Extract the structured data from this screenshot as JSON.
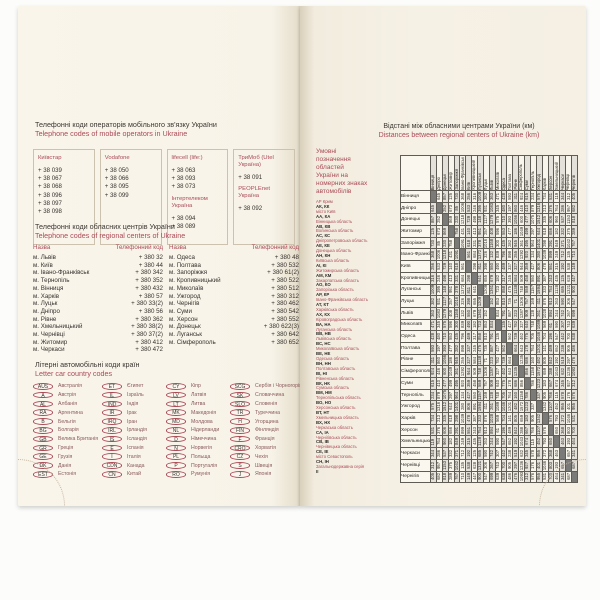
{
  "colors": {
    "accent": "#ab4a57",
    "ink": "#3c3733",
    "paper": "#f7f3e8",
    "table_stripe": "#e4e1da",
    "table_diagonal": "#7a7a78"
  },
  "page_left": {
    "section_mobile": {
      "title_uk": "Телефонні коди операторів мобільного зв'язку України",
      "title_en": "Telephone codes of mobile operators in Ukraine",
      "operators": [
        {
          "groups": [
            {
              "label": "Київстар",
              "codes": [
                "+ 38 039",
                "+ 38 067",
                "+ 38 068",
                "+ 38 096",
                "+ 38 097",
                "+ 38 098"
              ]
            }
          ]
        },
        {
          "groups": [
            {
              "label": "Vodafone",
              "codes": [
                "+ 38 050",
                "+ 38 066",
                "+ 38 095",
                "+ 38 099"
              ]
            }
          ]
        },
        {
          "groups": [
            {
              "label": "lifecell (life:)",
              "codes": [
                "+ 38 063",
                "+ 38 093",
                "+ 38 073"
              ]
            },
            {
              "label": "Інтертелеком Україна",
              "codes": [
                "+ 38 094",
                "+ 38 089"
              ]
            }
          ]
        },
        {
          "groups": [
            {
              "label": "ТриМоб (Utel Україна)",
              "codes": [
                "+ 38 091"
              ]
            },
            {
              "label": "PEOPLEnet Україна",
              "codes": [
                "+ 38 092"
              ]
            }
          ]
        }
      ]
    },
    "section_city_codes": {
      "title_uk": "Телефонні коди обласних центрів України",
      "title_en": "Telephone codes of regional centers of Ukraine",
      "col_name": "Назва",
      "col_code": "Телефонний код",
      "left": [
        [
          "м. Львів",
          "+ 380 32"
        ],
        [
          "м. Київ",
          "+ 380 44"
        ],
        [
          "м. Івано-Франківськ",
          "+ 380 342"
        ],
        [
          "м. Тернопіль",
          "+ 380 352"
        ],
        [
          "м. Вінниця",
          "+ 380 432"
        ],
        [
          "м. Харків",
          "+ 380 57"
        ],
        [
          "м. Луцьк",
          "+ 380 33(2)"
        ],
        [
          "м. Дніпро",
          "+ 380 56"
        ],
        [
          "м. Рівне",
          "+ 380 362"
        ],
        [
          "м. Хмельницький",
          "+ 380 38(2)"
        ],
        [
          "м. Чернівці",
          "+ 380 37(2)"
        ],
        [
          "м. Житомир",
          "+ 380 412"
        ],
        [
          "м. Черкаси",
          "+ 380 472"
        ]
      ],
      "right": [
        [
          "м. Одеса",
          "+ 380 48"
        ],
        [
          "м. Полтава",
          "+ 380 532"
        ],
        [
          "м. Запоріжжя",
          "+ 380 61(2)"
        ],
        [
          "м. Кропивницький",
          "+ 380 522"
        ],
        [
          "м. Миколаїв",
          "+ 380 512"
        ],
        [
          "м. Ужгород",
          "+ 380 312"
        ],
        [
          "м. Чернігів",
          "+ 380 462"
        ],
        [
          "м. Суми",
          "+ 380 542"
        ],
        [
          "м. Херсон",
          "+ 380 552"
        ],
        [
          "м. Донецьк",
          "+ 380 622(3)"
        ],
        [
          "м. Луганськ",
          "+ 380 642"
        ],
        [
          "м. Сімферополь",
          "+ 380 652"
        ]
      ]
    },
    "section_car_codes": {
      "title_uk": "Літерні автомобільні коди країн",
      "title_en": "Letter car country codes",
      "columns": [
        [
          {
            "code": "AUS",
            "country": "Австралія"
          },
          {
            "code": "A",
            "country": "Австрія"
          },
          {
            "code": "AL",
            "country": "Албанія"
          },
          {
            "code": "RA",
            "country": "Аргентина"
          },
          {
            "code": "B",
            "country": "Бельгія"
          },
          {
            "code": "BG",
            "country": "Болгарія"
          },
          {
            "code": "GB",
            "country": "Велика Британія"
          },
          {
            "code": "GR",
            "country": "Греція"
          },
          {
            "code": "GE",
            "country": "Грузія"
          },
          {
            "code": "DK",
            "country": "Данія"
          },
          {
            "code": "EST",
            "country": "Естонія"
          }
        ],
        [
          {
            "code": "ET",
            "country": "Єгипет"
          },
          {
            "code": "IL",
            "country": "Ізраїль"
          },
          {
            "code": "IND",
            "country": "Індія"
          },
          {
            "code": "IR",
            "country": "Ірак"
          },
          {
            "code": "IRQ",
            "country": "Іран"
          },
          {
            "code": "IRL",
            "country": "Ірландія"
          },
          {
            "code": "IS",
            "country": "Ісландія"
          },
          {
            "code": "E",
            "country": "Іспанія"
          },
          {
            "code": "I",
            "country": "Італія"
          },
          {
            "code": "CDN",
            "country": "Канада"
          },
          {
            "code": "CN",
            "country": "Китай"
          }
        ],
        [
          {
            "code": "CY",
            "country": "Кіпр"
          },
          {
            "code": "LV",
            "country": "Латвія"
          },
          {
            "code": "LT",
            "country": "Литва"
          },
          {
            "code": "MK",
            "country": "Македонія"
          },
          {
            "code": "MD",
            "country": "Молдова"
          },
          {
            "code": "NL",
            "country": "Нідерланди"
          },
          {
            "code": "D",
            "country": "Німеччина"
          },
          {
            "code": "N",
            "country": "Норвегія"
          },
          {
            "code": "PL",
            "country": "Польща"
          },
          {
            "code": "P",
            "country": "Португалія"
          },
          {
            "code": "RO",
            "country": "Румунія"
          }
        ],
        [
          {
            "code": "SCG",
            "country": "Сербія і Чорногорія"
          },
          {
            "code": "SK",
            "country": "Словаччина"
          },
          {
            "code": "SLO",
            "country": "Словенія"
          },
          {
            "code": "TR",
            "country": "Туреччина"
          },
          {
            "code": "H",
            "country": "Угорщина"
          },
          {
            "code": "FIN",
            "country": "Фінляндія"
          },
          {
            "code": "F",
            "country": "Франція"
          },
          {
            "code": "CRO",
            "country": "Хорватія"
          },
          {
            "code": "CZ",
            "country": "Чехія"
          },
          {
            "code": "S",
            "country": "Швеція"
          },
          {
            "code": "J",
            "country": "Японія"
          }
        ]
      ]
    }
  },
  "page_right": {
    "title_uk": "Відстані між обласними центрами України (км)",
    "title_en": "Distances between regional centers of Ukraine (km)",
    "legend": {
      "header": "Умовні позначення областей України на номерних знаках автомобілів",
      "entries": [
        {
          "name": "АР Крим",
          "codes": "АК, КК"
        },
        {
          "name": "місто Київ",
          "codes": "АА, КА"
        },
        {
          "name": "Вінницька область",
          "codes": "АВ, КВ"
        },
        {
          "name": "Волинська область",
          "codes": "АС, КС"
        },
        {
          "name": "Дніпропетровська область",
          "codes": "АЕ, КЕ"
        },
        {
          "name": "Донецька область",
          "codes": "АН, КН"
        },
        {
          "name": "Київська область",
          "codes": "АІ, КІ"
        },
        {
          "name": "Житомирська область",
          "codes": "АМ, КМ"
        },
        {
          "name": "Закарпатська область",
          "codes": "АО, КО"
        },
        {
          "name": "Запорізька область",
          "codes": "АР, КР"
        },
        {
          "name": "Івано-Франківська область",
          "codes": "АТ, КТ"
        },
        {
          "name": "Харківська область",
          "codes": "АХ, КХ"
        },
        {
          "name": "Кіровоградська область",
          "codes": "ВА, НА"
        },
        {
          "name": "Луганська область",
          "codes": "ВВ, НВ"
        },
        {
          "name": "Львівська область",
          "codes": "ВС, НС"
        },
        {
          "name": "Миколаївська область",
          "codes": "ВЕ, НЕ"
        },
        {
          "name": "Одеська область",
          "codes": "ВН, НН"
        },
        {
          "name": "Полтавська область",
          "codes": "ВІ, НІ"
        },
        {
          "name": "Рівненська область",
          "codes": "ВК, НК"
        },
        {
          "name": "Сумська область",
          "codes": "ВМ, НМ"
        },
        {
          "name": "Тернопільська область",
          "codes": "ВО, НО"
        },
        {
          "name": "Херсонська область",
          "codes": "ВТ, НТ"
        },
        {
          "name": "Хмельницька область",
          "codes": "ВХ, НХ"
        },
        {
          "name": "Черкаська область",
          "codes": "СА, ІА"
        },
        {
          "name": "Чернігівська область",
          "codes": "СВ, ІВ"
        },
        {
          "name": "Чернівецька область",
          "codes": "СЕ, ІЕ"
        },
        {
          "name": "місто Севастополь",
          "codes": "СН, ІН"
        },
        {
          "name": "Загальнодержавна серія",
          "codes": "ІІ"
        }
      ]
    },
    "matrix": {
      "cities": [
        "Вінниця",
        "Дніпро",
        "Донецьк",
        "Житомир",
        "Запоріжжя",
        "Івано-Франківськ",
        "Київ",
        "Кропивницький",
        "Луганськ",
        "Луцьк",
        "Львів",
        "Миколаїв",
        "Одеса",
        "Полтава",
        "Рівне",
        "Сімферополь",
        "Суми",
        "Тернопіль",
        "Ужгород",
        "Харків",
        "Херсон",
        "Хмельницький",
        "Черкаси",
        "Чернівці",
        "Чернігів"
      ],
      "upper": [
        [
          645,
          857,
          125,
          730,
          368,
          256,
          316,
          1009,
          382,
          363,
          471,
          428,
          593,
          311,
          924,
          615,
          234,
          575,
          734,
          531,
          119,
          344,
          312,
          405
        ],
        [
          252,
          673,
          85,
          1006,
          533,
          246,
          395,
          931,
          1083,
          345,
          480,
          197,
          860,
          446,
          410,
          879,
          1316,
          213,
          376,
          764,
          286,
          957,
          682
        ],
        [
          869,
          230,
          1218,
          729,
          498,
          148,
          1127,
          1279,
          575,
          710,
          393,
          1056,
          600,
          477,
          1075,
          1512,
          335,
          606,
          960,
          537,
          1153,
          818
        ],
        [
          758,
          431,
          140,
          413,
          951,
          257,
          408,
          596,
          553,
          477,
          186,
          1049,
          499,
          297,
          644,
          618,
          656,
          182,
          332,
          375,
          289
        ],
        [
          1091,
          618,
          331,
          378,
          1016,
          1168,
          300,
          435,
          282,
          945,
          361,
          495,
          964,
          1401,
          298,
          291,
          849,
          371,
          1042,
          767
        ],
        [
          561,
          684,
          1372,
          326,
          132,
          839,
          796,
          898,
          255,
          1292,
          920,
          134,
          280,
          1039,
          899,
          249,
          712,
          135,
          710
        ],
        [
          298,
          811,
          398,
          550,
          490,
          489,
          337,
          327,
          944,
          359,
          427,
          806,
          478,
          551,
          315,
          192,
          538,
          149
        ],
        [
          641,
          655,
          679,
          182,
          317,
          245,
          584,
          509,
          458,
          550,
          891,
          387,
          243,
          435,
          125,
          628,
          447
        ],
        [
          1209,
          1361,
          723,
          858,
          475,
          1138,
          748,
          559,
          1157,
          1594,
          333,
          754,
          1128,
          685,
          1321,
          900
        ],
        [
          152,
          853,
          810,
          735,
          71,
          1306,
          757,
          169,
          411,
          876,
          913,
          263,
          590,
          306,
          547
        ],
        [
          834,
          791,
          887,
          223,
          1287,
          909,
          128,
          261,
          1028,
          894,
          244,
          742,
          267,
          699
        ],
        [
          135,
          427,
          782,
          327,
          640,
          748,
          1089,
          569,
          61,
          590,
          307,
          743,
          639
        ],
        [
          562,
          739,
          462,
          775,
          705,
          1046,
          704,
          196,
          547,
          442,
          700,
          638
        ],
        [
          664,
          643,
          178,
          764,
          1201,
          141,
          489,
          652,
          238,
          905,
          486
        ],
        [
          1235,
          686,
          160,
          482,
          805,
          842,
          192,
          519,
          297,
          476
        ],
        [
          856,
          1158,
          1572,
          659,
          288,
          1043,
          632,
          1236,
          1093
        ],
        [
          786,
          1223,
          183,
          667,
          674,
          345,
          927,
          312
        ],
        [
          337,
          905,
          766,
          115,
          578,
          176,
          576
        ],
        [
          1342,
          1107,
          452,
          955,
          401,
          955
        ],
        [
          576,
          793,
          372,
          1046,
          531
        ],
        [
          650,
          368,
          803,
          700
        ],
        [
          463,
          193,
          464
        ],
        [
          657,
          341
        ],
        [
          687
        ]
      ]
    }
  }
}
